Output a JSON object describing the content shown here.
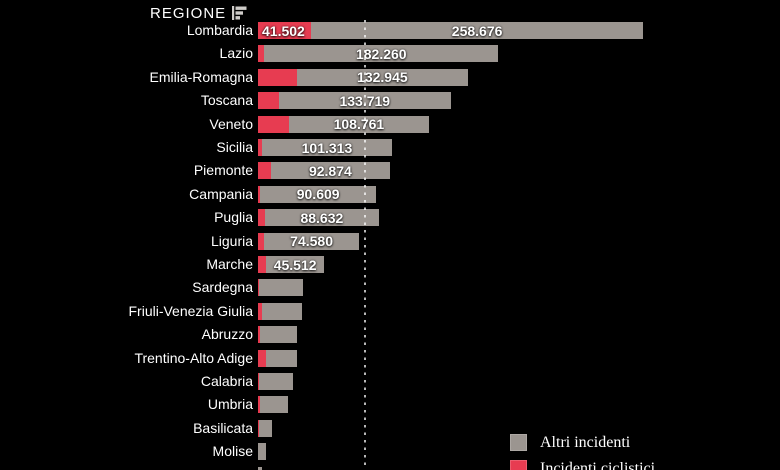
{
  "header": {
    "column_label": "REGIONE",
    "sort_icon": "sort-bars-icon"
  },
  "colors": {
    "background": "#000000",
    "bar_gray": "#9b9590",
    "bar_red": "#e73c51",
    "text": "#ffffff",
    "reference_line": "#b8b8b8"
  },
  "legend": [
    {
      "key": "altri",
      "label": "Altri incidenti",
      "color": "#9b9590"
    },
    {
      "key": "ciclistici",
      "label": "Incidenti ciclistici",
      "color": "#e73c51"
    }
  ],
  "chart_data": {
    "type": "bar",
    "orientation": "horizontal",
    "stacked": true,
    "title": "",
    "xlabel": "",
    "ylabel": "REGIONE",
    "xmax": 300178,
    "grid": false,
    "legend_position": "bottom-right",
    "series_names": [
      "Incidenti ciclistici",
      "Altri incidenti"
    ],
    "reference_line_value": 83400,
    "regions": [
      {
        "name": "Lombardia",
        "ciclistici": 41502,
        "altri": 258676,
        "label_ciclistici": "41.502",
        "label_altri": "258.676"
      },
      {
        "name": "Lazio",
        "ciclistici": 5000,
        "altri": 182260,
        "label_ciclistici": null,
        "label_altri": "182.260"
      },
      {
        "name": "Emilia-Romagna",
        "ciclistici": 30500,
        "altri": 132945,
        "label_ciclistici": null,
        "label_altri": "132.945"
      },
      {
        "name": "Toscana",
        "ciclistici": 16400,
        "altri": 133719,
        "label_ciclistici": null,
        "label_altri": "133.719"
      },
      {
        "name": "Veneto",
        "ciclistici": 24300,
        "altri": 108761,
        "label_ciclistici": null,
        "label_altri": "108.761"
      },
      {
        "name": "Sicilia",
        "ciclistici": 3100,
        "altri": 101313,
        "label_ciclistici": null,
        "label_altri": "101.313"
      },
      {
        "name": "Piemonte",
        "ciclistici": 10000,
        "altri": 92874,
        "label_ciclistici": null,
        "label_altri": "92.874"
      },
      {
        "name": "Campania",
        "ciclistici": 1600,
        "altri": 90609,
        "label_ciclistici": null,
        "label_altri": "90.609"
      },
      {
        "name": "Puglia",
        "ciclistici": 5500,
        "altri": 88632,
        "label_ciclistici": null,
        "label_altri": "88.632"
      },
      {
        "name": "Liguria",
        "ciclistici": 4500,
        "altri": 74580,
        "label_ciclistici": null,
        "label_altri": "74.580"
      },
      {
        "name": "Marche",
        "ciclistici": 6200,
        "altri": 45512,
        "label_ciclistici": null,
        "label_altri": "45.512"
      },
      {
        "name": "Sardegna",
        "ciclistici": 1000,
        "altri": 34000,
        "label_ciclistici": null,
        "label_altri": null
      },
      {
        "name": "Friuli-Venezia Giulia",
        "ciclistici": 3100,
        "altri": 31200,
        "label_ciclistici": null,
        "label_altri": null
      },
      {
        "name": "Abruzzo",
        "ciclistici": 1900,
        "altri": 28500,
        "label_ciclistici": null,
        "label_altri": null
      },
      {
        "name": "Trentino-Alto Adige",
        "ciclistici": 6200,
        "altri": 24200,
        "label_ciclistici": null,
        "label_altri": null
      },
      {
        "name": "Calabria",
        "ciclistici": 800,
        "altri": 26500,
        "label_ciclistici": null,
        "label_altri": null
      },
      {
        "name": "Umbria",
        "ciclistici": 1200,
        "altri": 22200,
        "label_ciclistici": null,
        "label_altri": null
      },
      {
        "name": "Basilicata",
        "ciclistici": 400,
        "altri": 10500,
        "label_ciclistici": null,
        "label_altri": null
      },
      {
        "name": "Molise",
        "ciclistici": 300,
        "altri": 5900,
        "label_ciclistici": null,
        "label_altri": null
      },
      {
        "name": "",
        "ciclistici": 200,
        "altri": 2900,
        "label_ciclistici": null,
        "label_altri": null
      }
    ]
  }
}
